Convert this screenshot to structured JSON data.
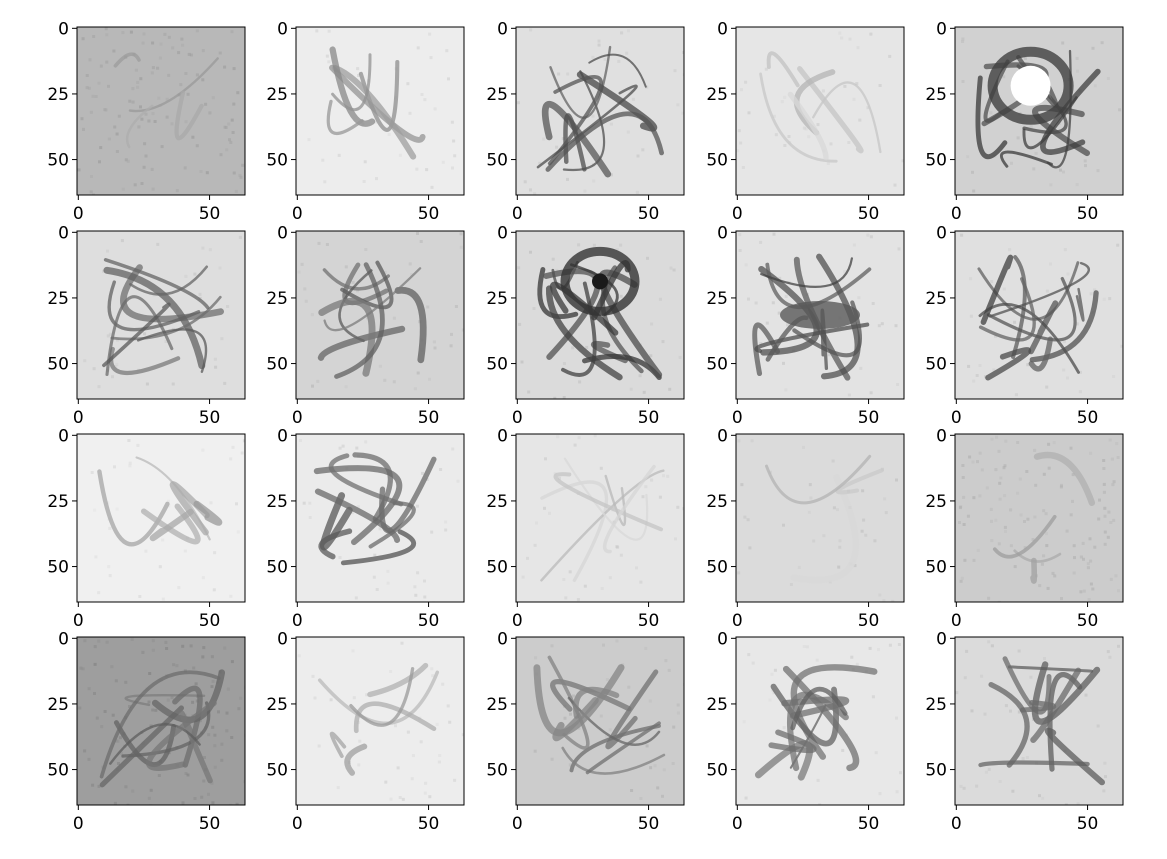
{
  "chart_data": {
    "type": "image-grid",
    "rows": 4,
    "cols": 5,
    "image_size": [
      64,
      64
    ],
    "xlim": [
      0,
      64
    ],
    "ylim": [
      64,
      0
    ],
    "x_ticks": [
      0,
      50
    ],
    "y_ticks": [
      0,
      25,
      50
    ],
    "x_tick_labels": [
      "0",
      "50"
    ],
    "y_tick_labels": [
      "0",
      "25",
      "50"
    ],
    "colormap": "grayscale",
    "panels": [
      {
        "style": "flat-gray",
        "mean_level": 0.72
      },
      {
        "style": "sketch-curve",
        "mean_level": 0.93
      },
      {
        "style": "sketch-cup",
        "mean_level": 0.88
      },
      {
        "style": "faint-sketch",
        "mean_level": 0.9
      },
      {
        "style": "dark-ring",
        "mean_level": 0.82
      },
      {
        "style": "sketch-face",
        "mean_level": 0.87
      },
      {
        "style": "diagonal-strokes",
        "mean_level": 0.83
      },
      {
        "style": "dark-blob",
        "mean_level": 0.86
      },
      {
        "style": "eye-shape",
        "mean_level": 0.89
      },
      {
        "style": "dark-swirls",
        "mean_level": 0.88
      },
      {
        "style": "light-outline",
        "mean_level": 0.94
      },
      {
        "style": "bone-shapes",
        "mean_level": 0.92
      },
      {
        "style": "faint-sketch",
        "mean_level": 0.9
      },
      {
        "style": "faint-gray",
        "mean_level": 0.86
      },
      {
        "style": "flat-gray",
        "mean_level": 0.8
      },
      {
        "style": "dark-texture",
        "mean_level": 0.62
      },
      {
        "style": "light-outline",
        "mean_level": 0.93
      },
      {
        "style": "striped-gray",
        "mean_level": 0.8
      },
      {
        "style": "sketch-figure",
        "mean_level": 0.91
      },
      {
        "style": "sketch-figure",
        "mean_level": 0.86
      }
    ]
  },
  "colors": {
    "axis": "#000000",
    "background": "#ffffff"
  }
}
